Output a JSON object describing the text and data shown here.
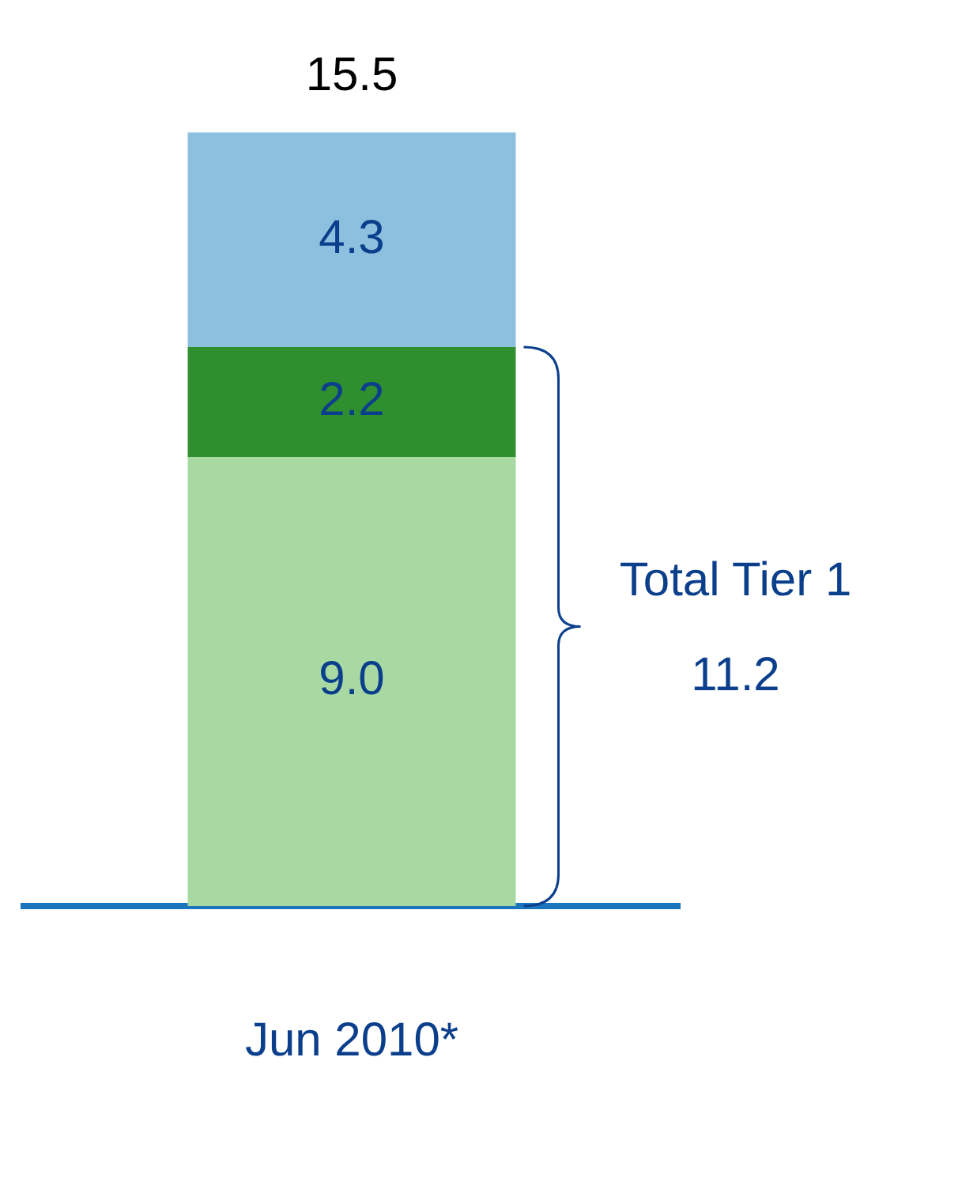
{
  "chart_data": {
    "type": "bar",
    "stacked": true,
    "categories": [
      "Jun 2010*"
    ],
    "series": [
      {
        "color": "#a9d9a3",
        "values": [
          9.0
        ],
        "value_labels": [
          "9.0"
        ]
      },
      {
        "color": "#2f8f2f",
        "values": [
          2.2
        ],
        "value_labels": [
          "2.2"
        ]
      },
      {
        "color": "#8dbfdf",
        "values": [
          4.3
        ],
        "value_labels": [
          "4.3"
        ]
      }
    ],
    "totals": [
      "15.5"
    ],
    "annotations": [
      "Total Tier 1",
      "11.2"
    ],
    "legend": false,
    "grid": false
  }
}
